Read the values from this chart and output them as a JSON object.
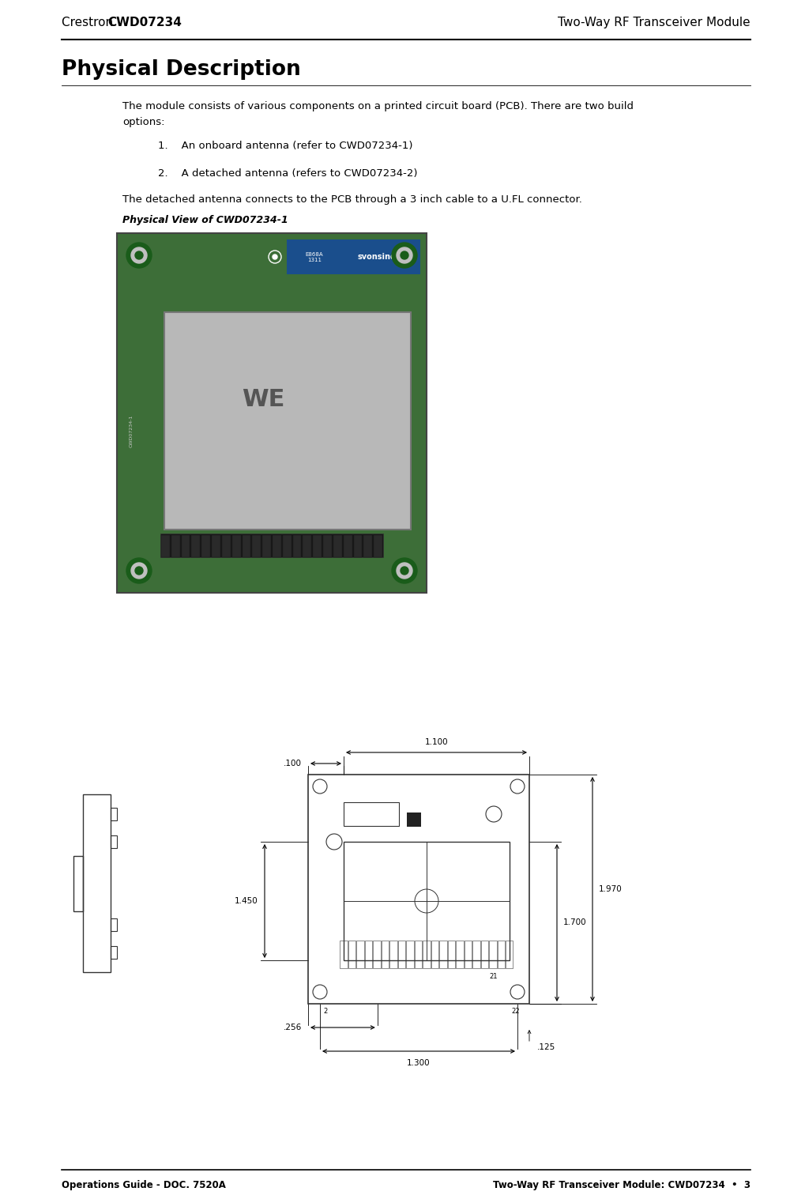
{
  "page_width": 10.19,
  "page_height": 15.17,
  "dpi": 100,
  "bg_color": "#ffffff",
  "header_left_normal": "Crestron ",
  "header_left_bold": "CWD07234",
  "header_right": "Two-Way RF Transceiver Module",
  "footer_left": "Operations Guide - DOC. 7520A",
  "footer_right": "Two-Way RF Transceiver Module: CWD07234  •  3",
  "section_title": "Physical Description",
  "body_text1_line1": "The module consists of various components on a printed circuit board (PCB). There are two build",
  "body_text1_line2": "options:",
  "item1": "1.    An onboard antenna (refer to CWD07234-1)",
  "item2": "2.    A detached antenna (refers to CWD07234-2)",
  "body_text2": "The detached antenna connects to the PCB through a 3 inch cable to a U.FL connector.",
  "caption": "Physical View of CWD07234-1",
  "header_font_size": 11,
  "section_title_font_size": 19,
  "body_font_size": 9.5,
  "footer_font_size": 8.5,
  "caption_font_size": 9,
  "dim_font_size": 7.5
}
